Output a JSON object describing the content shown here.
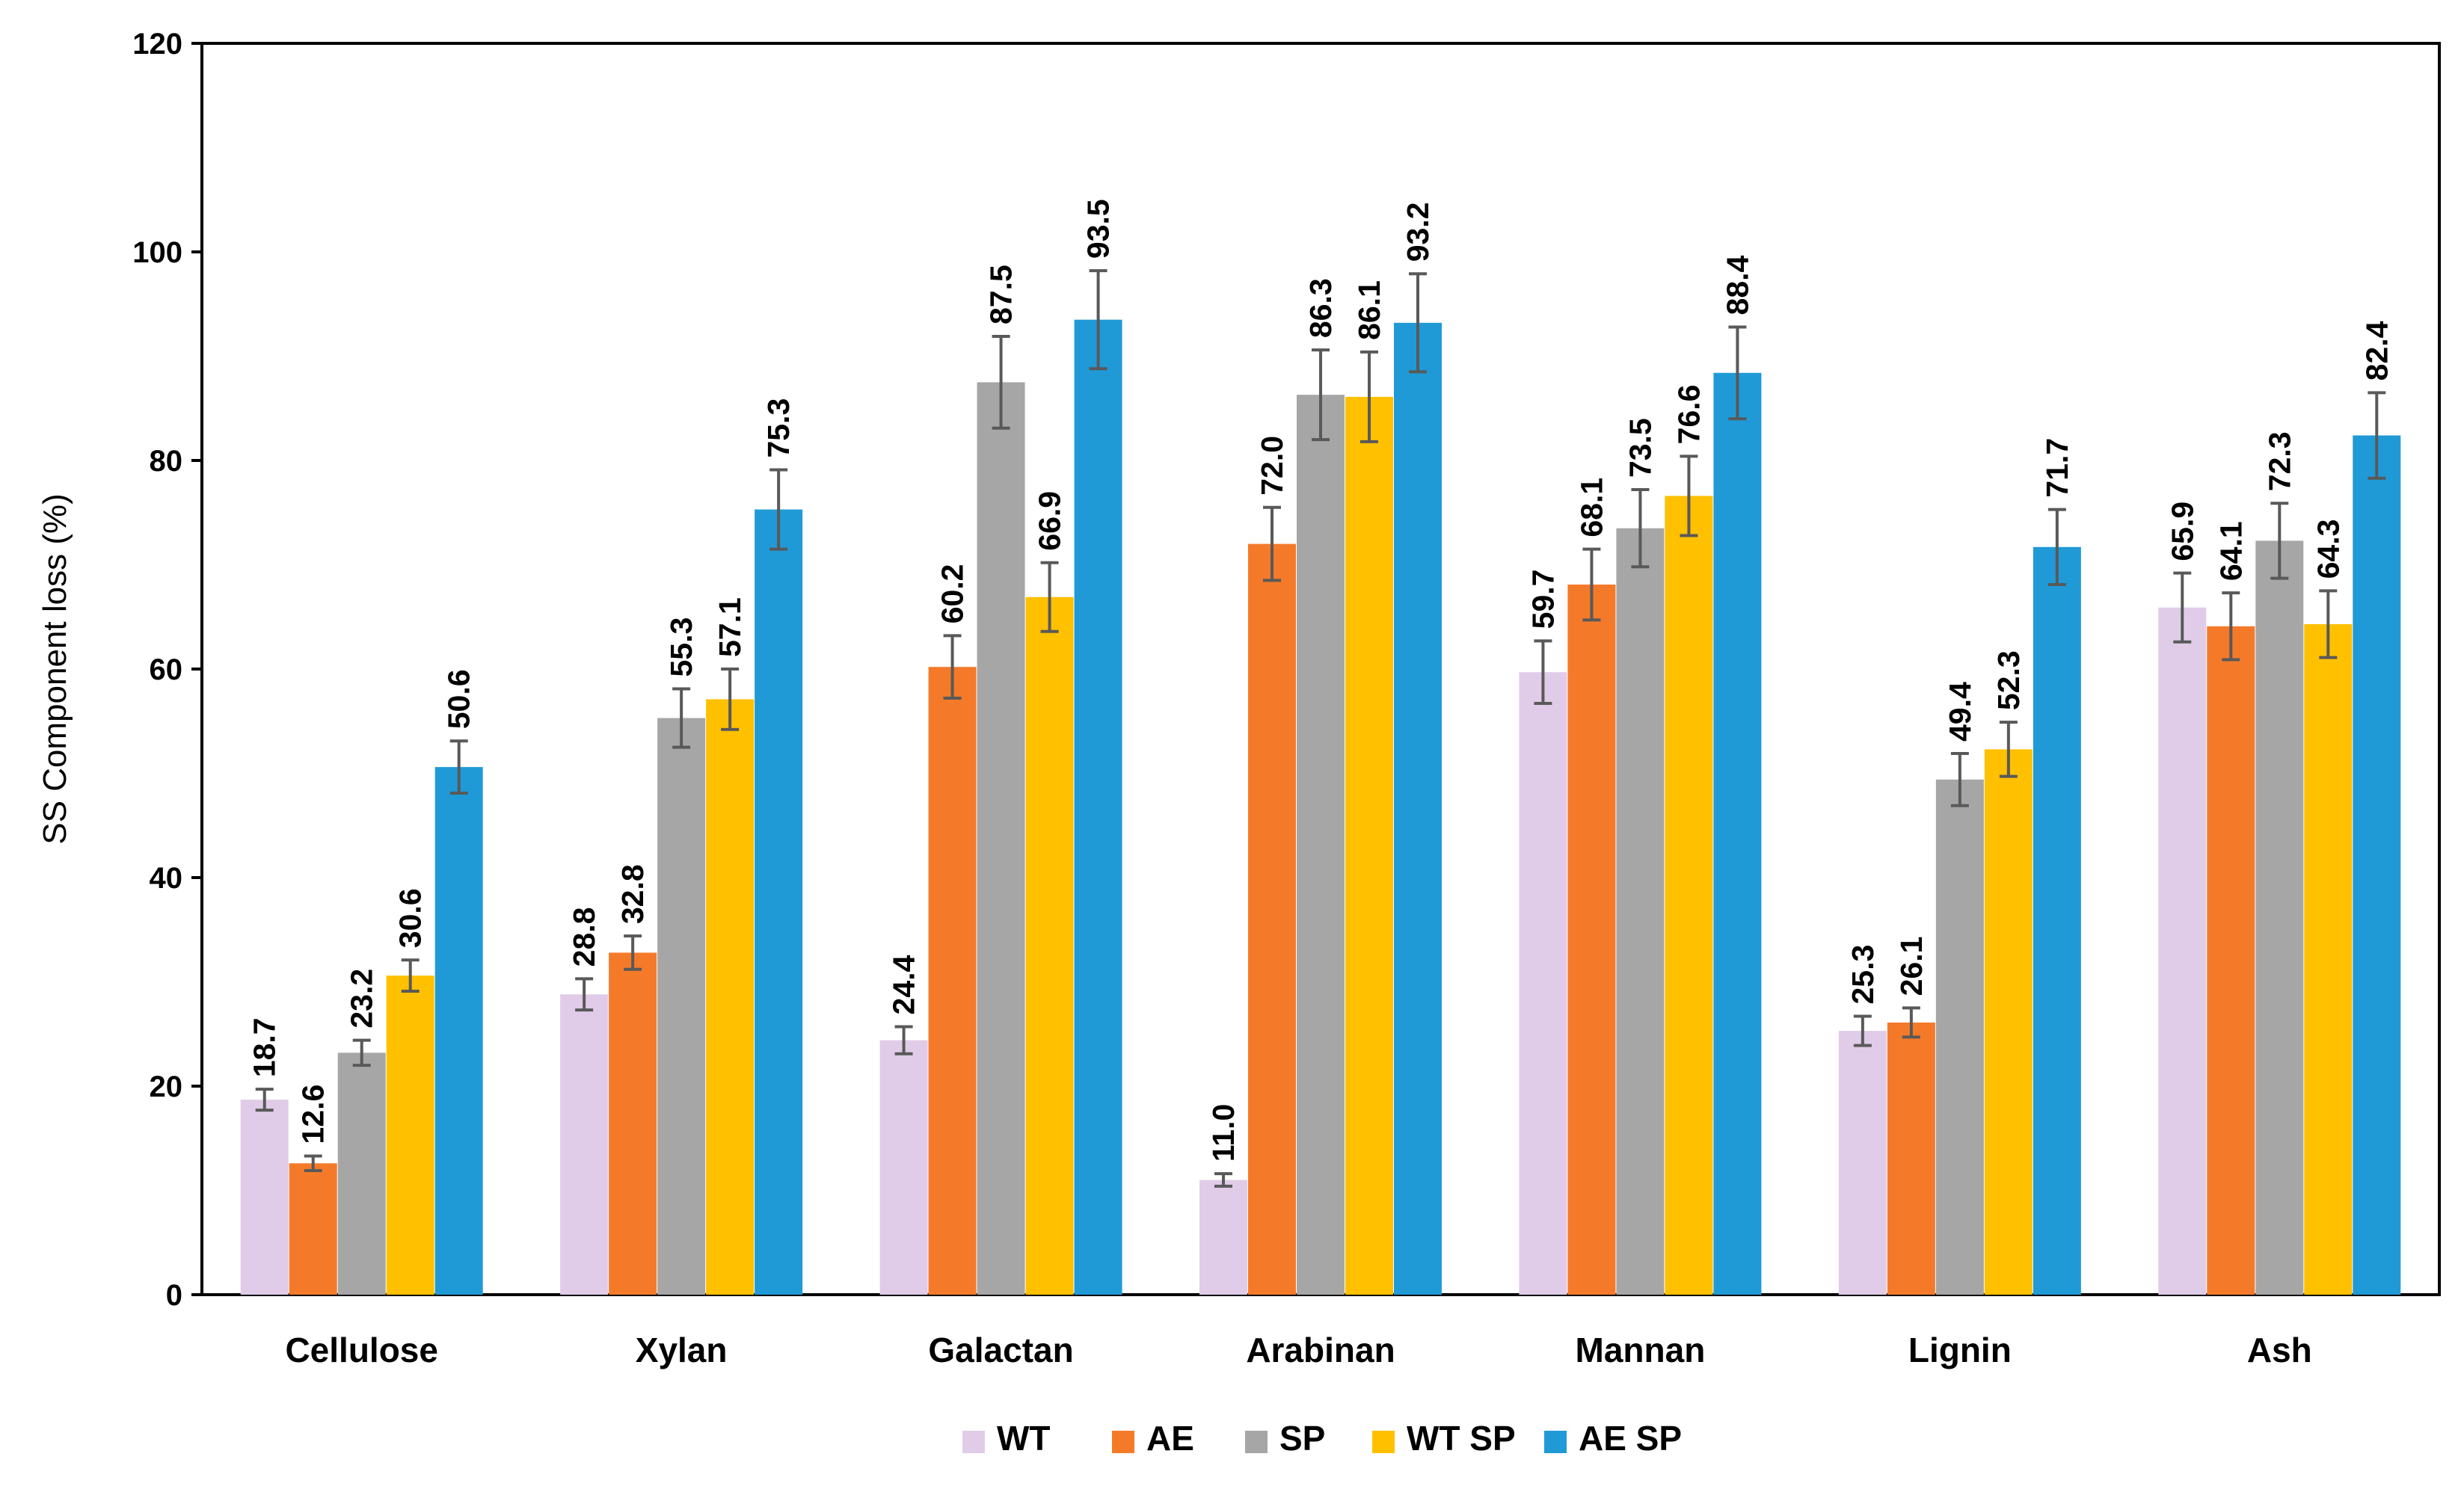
{
  "chart_data": {
    "type": "bar",
    "title": "",
    "xlabel": "",
    "ylabel": "SS Component loss (%)",
    "ylim": [
      0,
      120
    ],
    "yticks": [
      0,
      20,
      40,
      60,
      80,
      100,
      120
    ],
    "grid": false,
    "legend_position": "bottom-center",
    "categories": [
      "Cellulose",
      "Xylan",
      "Galactan",
      "Arabinan",
      "Mannan",
      "Lignin",
      "Ash"
    ],
    "series": [
      {
        "name": "WT",
        "color": "#e0cce8",
        "values": [
          18.7,
          28.8,
          24.4,
          11.0,
          59.7,
          25.3,
          65.9
        ],
        "labels": [
          "18.7",
          "28.8",
          "24.4",
          "11.0",
          "59.7",
          "25.3",
          "65.9"
        ],
        "errors": [
          1.0,
          1.5,
          1.3,
          0.6,
          3.0,
          1.4,
          3.3
        ]
      },
      {
        "name": "AE",
        "color": "#f47a2a",
        "values": [
          12.6,
          32.8,
          60.2,
          72.0,
          68.1,
          26.1,
          64.1
        ],
        "labels": [
          "12.6",
          "32.8",
          "60.2",
          "72.0",
          "68.1",
          "26.1",
          "64.1"
        ],
        "errors": [
          0.7,
          1.6,
          3.0,
          3.5,
          3.4,
          1.4,
          3.2
        ]
      },
      {
        "name": "SP",
        "color": "#a6a6a6",
        "values": [
          23.2,
          55.3,
          87.5,
          86.3,
          73.5,
          49.4,
          72.3
        ],
        "labels": [
          "23.2",
          "55.3",
          "87.5",
          "86.3",
          "73.5",
          "49.4",
          "72.3"
        ],
        "errors": [
          1.2,
          2.8,
          4.4,
          4.3,
          3.7,
          2.5,
          3.6
        ]
      },
      {
        "name": "WT SP",
        "color": "#ffc000",
        "values": [
          30.6,
          57.1,
          66.9,
          86.1,
          76.6,
          52.3,
          64.3
        ],
        "labels": [
          "30.6",
          "57.1",
          "66.9",
          "86.1",
          "76.6",
          "52.3",
          "64.3"
        ],
        "errors": [
          1.5,
          2.9,
          3.3,
          4.3,
          3.8,
          2.6,
          3.2
        ]
      },
      {
        "name": "AE SP",
        "color": "#1f9ad7",
        "values": [
          50.6,
          75.3,
          93.5,
          93.2,
          88.4,
          71.7,
          82.4
        ],
        "labels": [
          "50.6",
          "75.3",
          "93.5",
          "93.2",
          "88.4",
          "71.7",
          "82.4"
        ],
        "errors": [
          2.5,
          3.8,
          4.7,
          4.7,
          4.4,
          3.6,
          4.1
        ]
      }
    ]
  }
}
